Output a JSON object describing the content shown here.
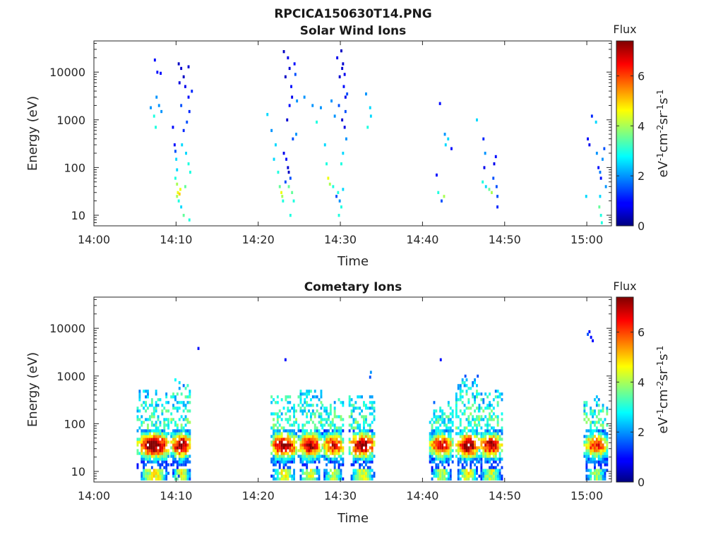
{
  "figure_title": "RPCICA150630T14.PNG",
  "chart_data": [
    {
      "type": "heatmap",
      "title": "Solar Wind Ions",
      "xlabel": "Time",
      "ylabel": "Energy (eV)",
      "x_ticks": [
        "14:00",
        "14:10",
        "14:20",
        "14:30",
        "14:40",
        "14:50",
        "15:00"
      ],
      "y_ticks": [
        "10",
        "100",
        "1000",
        "10000"
      ],
      "y_scale": "log",
      "x_range_minutes": [
        0,
        63
      ],
      "y_range": [
        6,
        45000
      ],
      "colorbar": {
        "title": "Flux",
        "unit_label": "eV-1cm-2sr-1s-1",
        "ticks": [
          "0",
          "2",
          "4",
          "6"
        ],
        "range": [
          0,
          7.4
        ],
        "colormap": "jet"
      },
      "cells": [
        [
          7.3,
          18000,
          1
        ],
        [
          7.6,
          10000,
          1
        ],
        [
          8.0,
          9500,
          1
        ],
        [
          7.5,
          3000,
          2
        ],
        [
          7.8,
          2000,
          2
        ],
        [
          6.8,
          1800,
          2
        ],
        [
          7.2,
          1200,
          3
        ],
        [
          7.4,
          700,
          3
        ],
        [
          8.1,
          1500,
          2
        ],
        [
          9.5,
          700,
          1
        ],
        [
          9.7,
          300,
          1
        ],
        [
          9.8,
          220,
          1.5
        ],
        [
          9.9,
          150,
          2.5
        ],
        [
          10.0,
          90,
          2.5
        ],
        [
          9.8,
          60,
          3
        ],
        [
          10.0,
          45,
          4
        ],
        [
          10.1,
          30,
          4.5
        ],
        [
          10.3,
          28,
          5
        ],
        [
          10.0,
          25,
          4
        ],
        [
          10.4,
          35,
          4.5
        ],
        [
          10.2,
          20,
          3
        ],
        [
          10.5,
          15,
          2.5
        ],
        [
          10.2,
          15000,
          0.5
        ],
        [
          10.5,
          12000,
          0.6
        ],
        [
          10.8,
          8000,
          0.5
        ],
        [
          10.3,
          6000,
          0.7
        ],
        [
          11.0,
          5000,
          0.8
        ],
        [
          11.4,
          3000,
          1
        ],
        [
          11.5,
          1500,
          1.2
        ],
        [
          11.2,
          900,
          1.5
        ],
        [
          10.8,
          600,
          1.2
        ],
        [
          10.6,
          300,
          2.5
        ],
        [
          11.1,
          200,
          2.5
        ],
        [
          11.4,
          120,
          3
        ],
        [
          11.6,
          80,
          3
        ],
        [
          11.0,
          40,
          3.5
        ],
        [
          10.8,
          10,
          3.5
        ],
        [
          11.5,
          8,
          3
        ],
        [
          11.4,
          13000,
          0.6
        ],
        [
          11.8,
          4000,
          1.2
        ],
        [
          10.5,
          2000,
          1.5
        ],
        [
          21.0,
          1300,
          2.5
        ],
        [
          21.5,
          600,
          2
        ],
        [
          21.8,
          150,
          2.5
        ],
        [
          22.0,
          300,
          2.5
        ],
        [
          22.3,
          80,
          3
        ],
        [
          22.5,
          40,
          3.5
        ],
        [
          22.7,
          30,
          4.5
        ],
        [
          22.8,
          25,
          4
        ],
        [
          22.9,
          20,
          3
        ],
        [
          23.0,
          200,
          0.8
        ],
        [
          23.3,
          150,
          1
        ],
        [
          23.5,
          100,
          0.6
        ],
        [
          23.6,
          80,
          0.5
        ],
        [
          23.8,
          60,
          1.5
        ],
        [
          23.2,
          50,
          1.5
        ],
        [
          23.6,
          40,
          3.5
        ],
        [
          24.0,
          30,
          3.5
        ],
        [
          24.2,
          20,
          3
        ],
        [
          23.4,
          1000,
          0.6
        ],
        [
          23.7,
          2000,
          1
        ],
        [
          24.0,
          3000,
          0.8
        ],
        [
          23.9,
          5000,
          1
        ],
        [
          23.2,
          8000,
          0.5
        ],
        [
          23.7,
          12000,
          0.6
        ],
        [
          23.5,
          20000,
          0.8
        ],
        [
          24.3,
          15000,
          1
        ],
        [
          24.4,
          9000,
          1.5
        ],
        [
          24.6,
          2500,
          2
        ],
        [
          23.0,
          27000,
          0.5
        ],
        [
          24.1,
          400,
          1.5
        ],
        [
          24.5,
          500,
          2
        ],
        [
          23.8,
          10,
          3
        ],
        [
          24.1,
          6,
          3
        ],
        [
          25.5,
          3000,
          2
        ],
        [
          26.5,
          2000,
          2
        ],
        [
          27.0,
          900,
          3
        ],
        [
          27.5,
          1800,
          2
        ],
        [
          28.0,
          300,
          2.5
        ],
        [
          28.2,
          120,
          3
        ],
        [
          28.4,
          60,
          4.5
        ],
        [
          28.6,
          45,
          4
        ],
        [
          29.0,
          40,
          3
        ],
        [
          29.4,
          25,
          1.5
        ],
        [
          29.6,
          30,
          3
        ],
        [
          29.8,
          20,
          2
        ],
        [
          30.0,
          15,
          3
        ],
        [
          30.2,
          35,
          2.5
        ],
        [
          29.7,
          10,
          3
        ],
        [
          29.5,
          20000,
          0.8
        ],
        [
          30.0,
          28000,
          0.5
        ],
        [
          30.2,
          15000,
          0.6
        ],
        [
          29.8,
          8000,
          0.6
        ],
        [
          30.3,
          5000,
          1
        ],
        [
          30.5,
          3000,
          0.8
        ],
        [
          29.7,
          2000,
          1.5
        ],
        [
          30.1,
          1000,
          0.6
        ],
        [
          30.4,
          700,
          0.7
        ],
        [
          30.6,
          400,
          2
        ],
        [
          30.2,
          200,
          2.5
        ],
        [
          30.0,
          120,
          3
        ],
        [
          30.5,
          1500,
          1.5
        ],
        [
          29.2,
          1200,
          2
        ],
        [
          28.8,
          2500,
          2
        ],
        [
          30.7,
          3500,
          1.5
        ],
        [
          30.4,
          9000,
          0.8
        ],
        [
          30.1,
          12000,
          0.6
        ],
        [
          33.0,
          3500,
          2
        ],
        [
          33.5,
          1800,
          2.5
        ],
        [
          33.6,
          1200,
          2.5
        ],
        [
          33.2,
          700,
          3
        ],
        [
          42.0,
          2200,
          1
        ],
        [
          41.8,
          30,
          3
        ],
        [
          42.2,
          20,
          1.5
        ],
        [
          42.5,
          25,
          4
        ],
        [
          42.6,
          500,
          2
        ],
        [
          43.0,
          400,
          2.5
        ],
        [
          43.4,
          250,
          1
        ],
        [
          42.7,
          300,
          2.5
        ],
        [
          41.6,
          70,
          1
        ],
        [
          46.5,
          1000,
          2.5
        ],
        [
          47.3,
          400,
          1.2
        ],
        [
          47.5,
          200,
          2
        ],
        [
          47.4,
          100,
          0.8
        ],
        [
          47.2,
          50,
          3
        ],
        [
          47.6,
          40,
          2.5
        ],
        [
          48.0,
          35,
          3.5
        ],
        [
          48.3,
          30,
          4
        ],
        [
          48.5,
          60,
          1.5
        ],
        [
          48.6,
          120,
          0.8
        ],
        [
          48.8,
          170,
          1
        ],
        [
          48.9,
          40,
          1.5
        ],
        [
          49.0,
          25,
          1.5
        ],
        [
          49.0,
          15,
          1.2
        ],
        [
          60.0,
          400,
          1
        ],
        [
          60.2,
          300,
          0.8
        ],
        [
          60.5,
          1200,
          1.2
        ],
        [
          61.0,
          900,
          2.5
        ],
        [
          61.1,
          200,
          2
        ],
        [
          61.3,
          100,
          1
        ],
        [
          61.5,
          80,
          1.8
        ],
        [
          61.6,
          60,
          1
        ],
        [
          61.8,
          150,
          2
        ],
        [
          62.0,
          250,
          1.5
        ],
        [
          62.2,
          40,
          2
        ],
        [
          61.5,
          25,
          2.5
        ],
        [
          61.4,
          15,
          3.5
        ],
        [
          61.6,
          10,
          3
        ],
        [
          61.7,
          7,
          3
        ],
        [
          59.8,
          25,
          2.5
        ]
      ]
    },
    {
      "type": "heatmap",
      "title": "Cometary Ions",
      "xlabel": "Time",
      "ylabel": "Energy (eV)",
      "x_ticks": [
        "14:00",
        "14:10",
        "14:20",
        "14:30",
        "14:40",
        "14:50",
        "15:00"
      ],
      "y_ticks": [
        "10",
        "100",
        "1000",
        "10000"
      ],
      "y_scale": "log",
      "x_range_minutes": [
        0,
        63
      ],
      "y_range": [
        6,
        45000
      ],
      "colorbar": {
        "title": "Flux",
        "unit_label": "eV-1cm-2sr-1s-1",
        "ticks": [
          "0",
          "2",
          "4",
          "6"
        ],
        "range": [
          0,
          7.4
        ],
        "colormap": "jet"
      },
      "bursts": [
        {
          "t_start": 5.2,
          "t_end": 9.2,
          "peak": 7.3,
          "e_top": 500
        },
        {
          "t_start": 9.3,
          "t_end": 11.8,
          "peak": 7.0,
          "e_top": 900
        },
        {
          "t_start": 21.5,
          "t_end": 24.6,
          "peak": 7.1,
          "e_top": 450
        },
        {
          "t_start": 24.8,
          "t_end": 27.6,
          "peak": 6.8,
          "e_top": 550
        },
        {
          "t_start": 27.7,
          "t_end": 30.4,
          "peak": 6.2,
          "e_top": 400
        },
        {
          "t_start": 31.0,
          "t_end": 34.2,
          "peak": 7.0,
          "e_top": 400
        },
        {
          "t_start": 40.8,
          "t_end": 43.6,
          "peak": 6.4,
          "e_top": 300
        },
        {
          "t_start": 44.0,
          "t_end": 46.8,
          "peak": 7.2,
          "e_top": 900
        },
        {
          "t_start": 46.8,
          "t_end": 49.6,
          "peak": 6.6,
          "e_top": 500
        },
        {
          "t_start": 59.6,
          "t_end": 62.4,
          "peak": 6.0,
          "e_top": 400
        }
      ],
      "cells": [
        [
          12.6,
          3800,
          1
        ],
        [
          23.2,
          2200,
          1
        ],
        [
          33.6,
          1200,
          2
        ],
        [
          42.1,
          2200,
          1
        ],
        [
          45.1,
          1000,
          1.5
        ],
        [
          46.6,
          1000,
          1.5
        ],
        [
          33.5,
          950,
          1.5
        ],
        [
          60.2,
          8500,
          1
        ],
        [
          60.4,
          6500,
          1
        ],
        [
          60.6,
          5500,
          1
        ],
        [
          60.0,
          7500,
          1.5
        ],
        [
          10.2,
          8,
          1.5
        ],
        [
          12.0,
          6,
          2
        ],
        [
          23.8,
          6,
          2
        ]
      ]
    }
  ]
}
